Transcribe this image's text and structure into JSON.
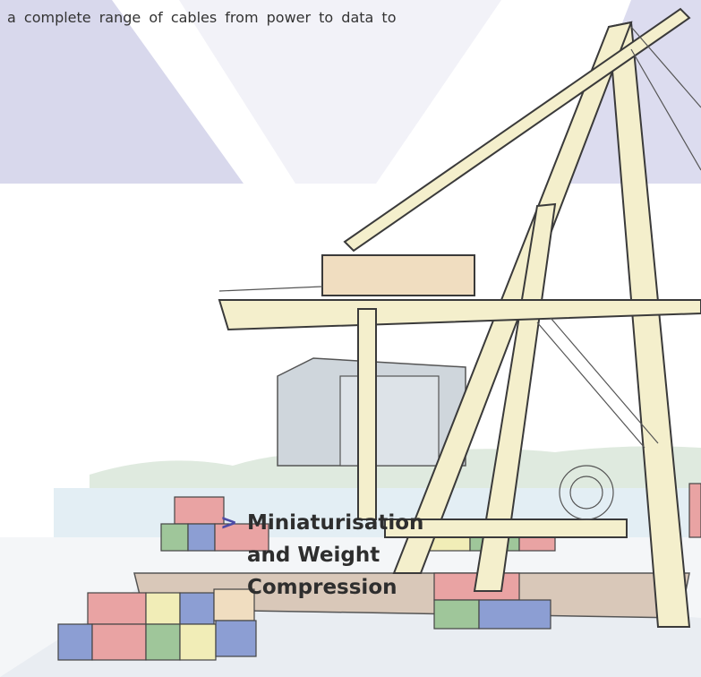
{
  "intro": "a complete range of cables from power to data to",
  "heading": {
    "marker": ">",
    "lines": [
      "Miniaturisation",
      "and Weight",
      "Compression"
    ]
  }
}
